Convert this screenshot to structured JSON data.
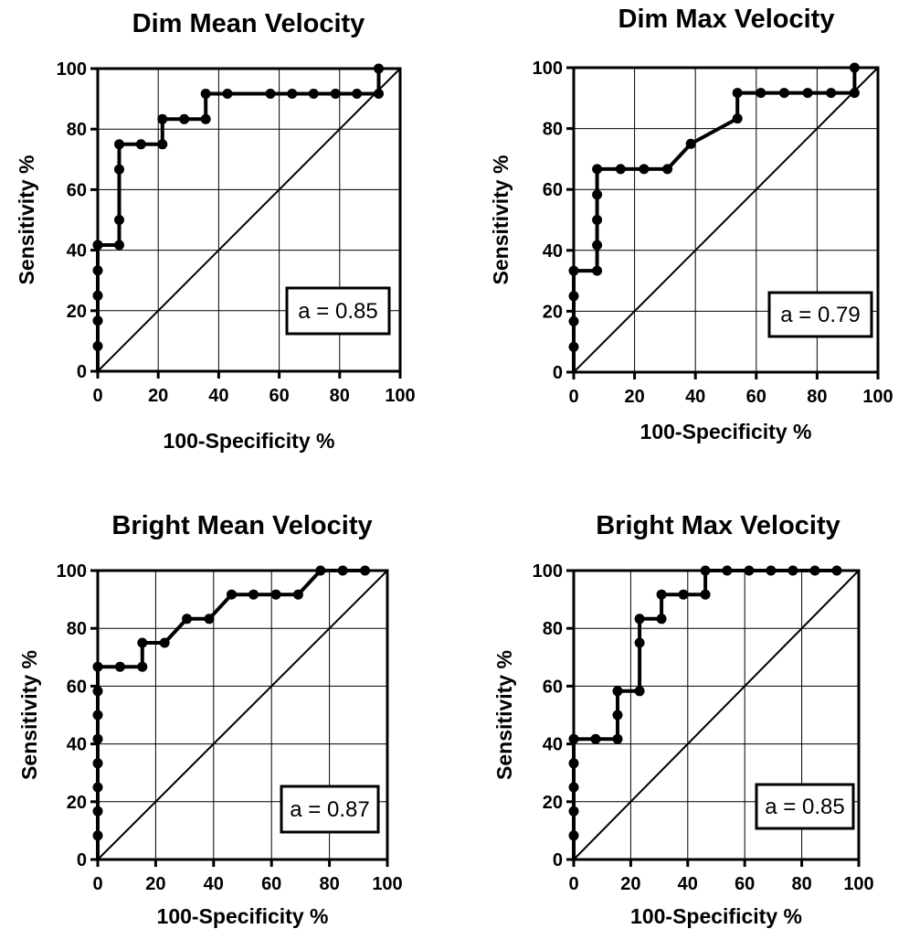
{
  "chart_data": [
    {
      "type": "line",
      "title": "Dim Mean Velocity",
      "xlabel": "100-Specificity %",
      "ylabel": "Sensitivity %",
      "xlim": [
        0,
        100
      ],
      "ylim": [
        0,
        100
      ],
      "xticks": [
        "0",
        "20",
        "40",
        "60",
        "80",
        "100"
      ],
      "yticks": [
        "0",
        "20",
        "40",
        "60",
        "80",
        "100"
      ],
      "grid": true,
      "annotation": "a = 0.85",
      "annotation_position": "lower-right",
      "reference_line": "diagonal",
      "series": [
        {
          "x": [
            0,
            0,
            0,
            0,
            0,
            0,
            7.1,
            7.1,
            7.1,
            7.1,
            14.3,
            21.4,
            21.4,
            28.6,
            35.7,
            35.7,
            42.9,
            57.1,
            64.3,
            71.4,
            78.6,
            85.7,
            92.9,
            92.9
          ],
          "y": [
            8.3,
            16.7,
            25,
            33.3,
            41.7,
            41.7,
            41.7,
            50,
            66.7,
            75,
            75,
            75,
            83.3,
            83.3,
            83.3,
            91.7,
            91.7,
            91.7,
            91.7,
            91.7,
            91.7,
            91.7,
            91.7,
            100
          ]
        }
      ]
    },
    {
      "type": "line",
      "title": "Dim Max Velocity",
      "xlabel": "100-Specificity %",
      "ylabel": "Sensitivity %",
      "xlim": [
        0,
        100
      ],
      "ylim": [
        0,
        100
      ],
      "xticks": [
        "0",
        "20",
        "40",
        "60",
        "80",
        "100"
      ],
      "yticks": [
        "0",
        "20",
        "40",
        "60",
        "80",
        "100"
      ],
      "grid": true,
      "annotation": "a = 0.79",
      "annotation_position": "lower-right",
      "reference_line": "diagonal",
      "series": [
        {
          "x": [
            0,
            0,
            0,
            0,
            7.7,
            7.7,
            7.7,
            7.7,
            7.7,
            15.4,
            23.1,
            30.8,
            38.5,
            53.8,
            53.8,
            61.5,
            69.2,
            76.9,
            84.6,
            92.3,
            92.3
          ],
          "y": [
            8.3,
            16.7,
            25,
            33.3,
            33.3,
            41.7,
            50,
            58.3,
            66.7,
            66.7,
            66.7,
            66.7,
            75,
            83.3,
            91.7,
            91.7,
            91.7,
            91.7,
            91.7,
            91.7,
            100
          ]
        }
      ]
    },
    {
      "type": "line",
      "title": "Bright Mean Velocity",
      "xlabel": "100-Specificity %",
      "ylabel": "Sensitivity %",
      "xlim": [
        0,
        100
      ],
      "ylim": [
        0,
        100
      ],
      "xticks": [
        "0",
        "20",
        "40",
        "60",
        "80",
        "100"
      ],
      "yticks": [
        "0",
        "20",
        "40",
        "60",
        "80",
        "100"
      ],
      "grid": true,
      "annotation": "a = 0.87",
      "annotation_position": "lower-right",
      "reference_line": "diagonal",
      "series": [
        {
          "x": [
            0,
            0,
            0,
            0,
            0,
            0,
            0,
            0,
            7.7,
            15.4,
            15.4,
            23.1,
            30.8,
            38.5,
            46.2,
            53.8,
            61.5,
            69.2,
            76.9,
            84.6,
            92.3
          ],
          "y": [
            8.3,
            16.7,
            25,
            33.3,
            41.7,
            50,
            58.3,
            66.7,
            66.7,
            66.7,
            75,
            75,
            83.3,
            83.3,
            91.7,
            91.7,
            91.7,
            91.7,
            100,
            100,
            100
          ]
        }
      ]
    },
    {
      "type": "line",
      "title": "Bright Max Velocity",
      "xlabel": "100-Specificity %",
      "ylabel": "Sensitivity %",
      "xlim": [
        0,
        100
      ],
      "ylim": [
        0,
        100
      ],
      "xticks": [
        "0",
        "20",
        "40",
        "60",
        "80",
        "100"
      ],
      "yticks": [
        "0",
        "20",
        "40",
        "60",
        "80",
        "100"
      ],
      "grid": true,
      "annotation": "a = 0.85",
      "annotation_position": "lower-right",
      "reference_line": "diagonal",
      "series": [
        {
          "x": [
            0,
            0,
            0,
            0,
            0,
            7.7,
            15.4,
            15.4,
            15.4,
            23.1,
            23.1,
            23.1,
            30.8,
            30.8,
            38.5,
            46.2,
            46.2,
            53.8,
            61.5,
            69.2,
            76.9,
            84.6,
            92.3
          ],
          "y": [
            8.3,
            16.7,
            25,
            33.3,
            41.7,
            41.7,
            41.7,
            50,
            58.3,
            58.3,
            75,
            83.3,
            83.3,
            91.7,
            91.7,
            91.7,
            100,
            100,
            100,
            100,
            100,
            100,
            100
          ]
        }
      ]
    }
  ]
}
